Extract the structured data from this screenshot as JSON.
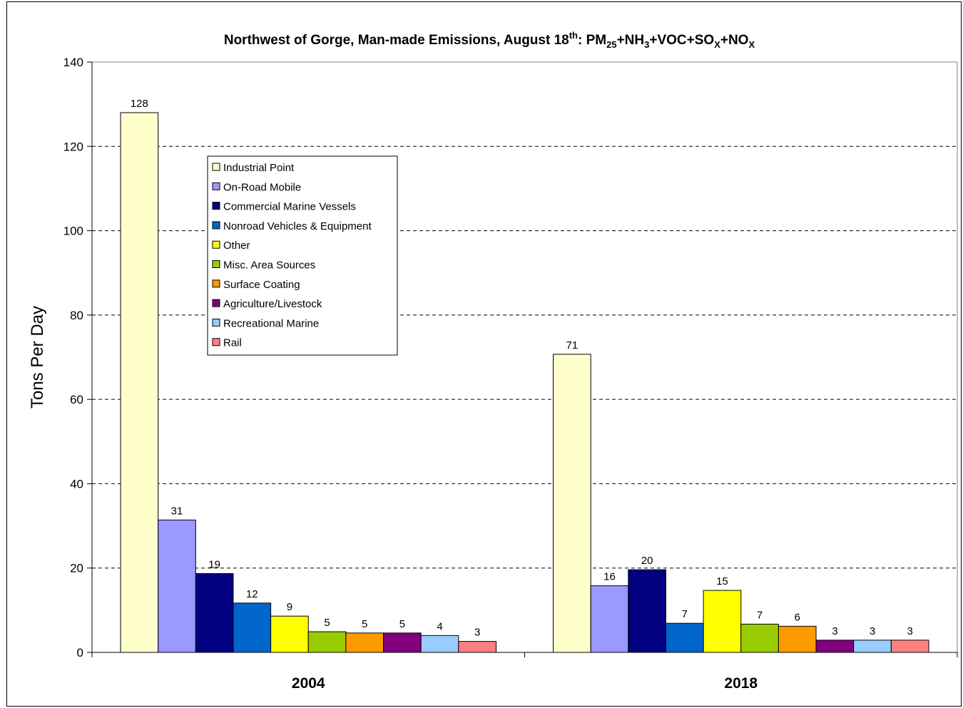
{
  "chart_data": {
    "type": "bar",
    "title": {
      "prefix": "Northwest of Gorge, Man-made Emissions, August 18",
      "prefix_sup": "th",
      "colon": ": PM",
      "pm_sub": "25",
      "nh": "+NH",
      "nh_sub": "3",
      "voc_so": "+VOC+SO",
      "so_sub": "X",
      "no": "+NO",
      "no_sub": "X"
    },
    "ylabel": "Tons Per Day",
    "xlabel": "",
    "ylim": [
      0,
      140
    ],
    "yticks": [
      "0",
      "20",
      "40",
      "60",
      "80",
      "100",
      "120",
      "140"
    ],
    "grid": true,
    "legend_position": "upper-left",
    "categories": [
      "2004",
      "2018"
    ],
    "series": [
      {
        "name": "Industrial Point",
        "color": "#FFFFCC",
        "values": [
          128,
          70.7
        ],
        "labels": [
          "128",
          "71"
        ]
      },
      {
        "name": "On-Road Mobile",
        "color": "#9999FF",
        "values": [
          31.4,
          15.8
        ],
        "labels": [
          "31",
          "16"
        ]
      },
      {
        "name": "Commercial Marine Vessels",
        "color": "#000080",
        "values": [
          18.7,
          19.6
        ],
        "labels": [
          "19",
          "20"
        ]
      },
      {
        "name": "Nonroad Vehicles & Equipment",
        "color": "#0066CC",
        "values": [
          11.7,
          6.9
        ],
        "labels": [
          "12",
          "7"
        ]
      },
      {
        "name": "Other",
        "color": "#FFFF00",
        "values": [
          8.6,
          14.7
        ],
        "labels": [
          "9",
          "15"
        ]
      },
      {
        "name": "Misc. Area Sources",
        "color": "#99CC00",
        "values": [
          4.9,
          6.7
        ],
        "labels": [
          "5",
          "7"
        ]
      },
      {
        "name": "Surface Coating",
        "color": "#FF9900",
        "values": [
          4.6,
          6.2
        ],
        "labels": [
          "5",
          "6"
        ]
      },
      {
        "name": "Agriculture/Livestock",
        "color": "#800080",
        "values": [
          4.6,
          2.9
        ],
        "labels": [
          "5",
          "3"
        ]
      },
      {
        "name": "Recreational Marine",
        "color": "#99CCFF",
        "values": [
          4.0,
          2.9
        ],
        "labels": [
          "4",
          "3"
        ]
      },
      {
        "name": "Rail",
        "color": "#FF8080",
        "values": [
          2.6,
          2.9
        ],
        "labels": [
          "3",
          "3"
        ]
      }
    ]
  }
}
